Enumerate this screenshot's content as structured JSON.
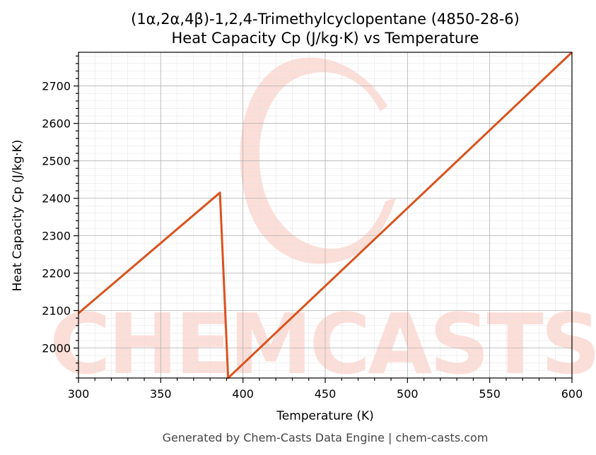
{
  "chart_data": {
    "type": "line",
    "title_line1": "(1α,2α,4β)-1,2,4-Trimethylcyclopentane (4850-28-6)",
    "title_line2": "Heat Capacity Cp (J/kg·K) vs Temperature",
    "xlabel": "Temperature (K)",
    "ylabel": "Heat Capacity Cp (J/kg·K)",
    "xlim": [
      300,
      600
    ],
    "ylim": [
      1920,
      2790
    ],
    "xticks": [
      300,
      350,
      400,
      450,
      500,
      550,
      600
    ],
    "yticks": [
      2000,
      2100,
      2200,
      2300,
      2400,
      2500,
      2600,
      2700
    ],
    "grid": true,
    "series": [
      {
        "color": "#d9531e",
        "x": [
          300,
          386,
          391,
          600
        ],
        "y": [
          2093,
          2415,
          1920,
          2790
        ]
      }
    ]
  },
  "footer": "Generated by Chem-Casts Data Engine | chem-casts.com",
  "watermark": "CHEMCASTS"
}
